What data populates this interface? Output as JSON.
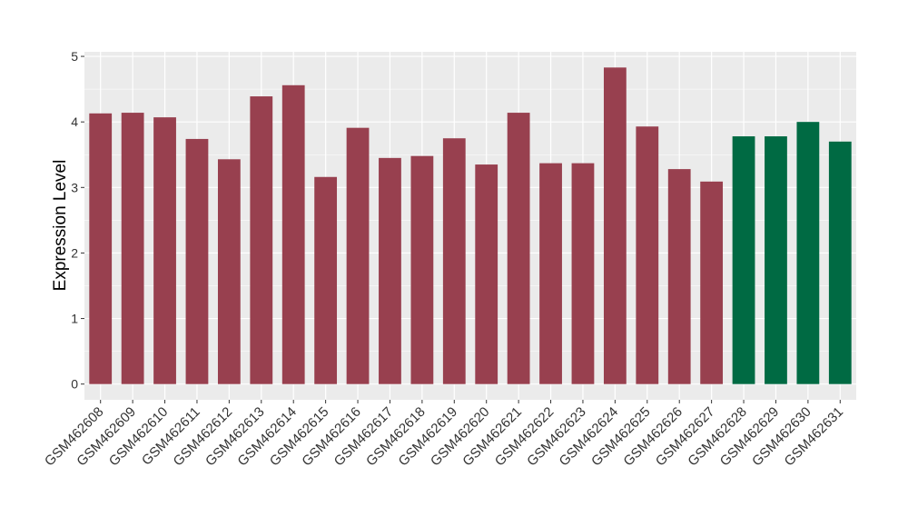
{
  "chart_data": {
    "type": "bar",
    "y_label": "Expression Level",
    "categories": [
      "GSM462608",
      "GSM462609",
      "GSM462610",
      "GSM462611",
      "GSM462612",
      "GSM462613",
      "GSM462614",
      "GSM462615",
      "GSM462616",
      "GSM462617",
      "GSM462618",
      "GSM462619",
      "GSM462620",
      "GSM462621",
      "GSM462622",
      "GSM462623",
      "GSM462624",
      "GSM462625",
      "GSM462626",
      "GSM462627",
      "GSM462628",
      "GSM462629",
      "GSM462630",
      "GSM462631"
    ],
    "values": [
      4.13,
      4.14,
      4.07,
      3.74,
      3.43,
      4.39,
      4.56,
      3.16,
      3.91,
      3.45,
      3.48,
      3.75,
      3.35,
      4.14,
      3.37,
      3.37,
      4.83,
      3.93,
      3.28,
      3.09,
      3.78,
      3.78,
      4.0,
      3.7
    ],
    "colors": [
      "#98404f",
      "#98404f",
      "#98404f",
      "#98404f",
      "#98404f",
      "#98404f",
      "#98404f",
      "#98404f",
      "#98404f",
      "#98404f",
      "#98404f",
      "#98404f",
      "#98404f",
      "#98404f",
      "#98404f",
      "#98404f",
      "#98404f",
      "#98404f",
      "#98404f",
      "#98404f",
      "#006a43",
      "#006a43",
      "#006a43",
      "#006a43"
    ],
    "ylim": [
      -0.24,
      5.07
    ],
    "yticks": [
      0,
      1,
      2,
      3,
      4,
      5
    ],
    "y_minor_ticks": [
      0.5,
      1.5,
      2.5,
      3.5,
      4.5
    ],
    "grid": true
  }
}
